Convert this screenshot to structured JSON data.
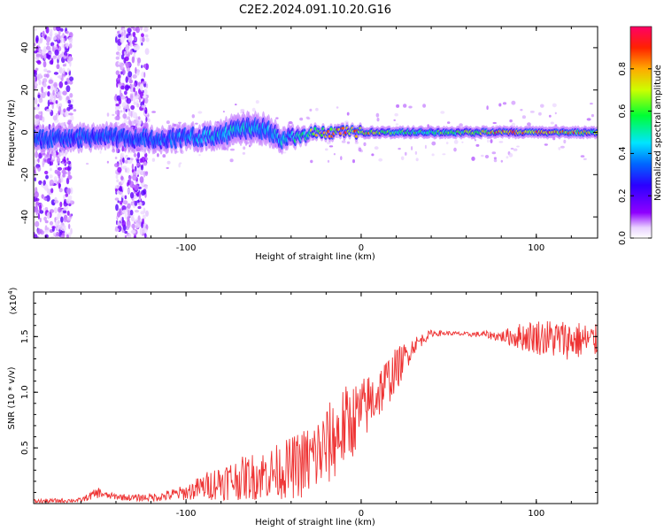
{
  "title": "C2E2.2024.091.10.20.G16",
  "chart_data": [
    {
      "type": "heatmap",
      "xlabel": "Height of straight line (km)",
      "ylabel": "Frequency (Hz)",
      "xlim": [
        -187,
        135
      ],
      "ylim": [
        -50,
        50
      ],
      "x_ticks": [
        "-100",
        "0",
        "100"
      ],
      "x_tick_values": [
        -100,
        0,
        100
      ],
      "y_ticks": [
        "-40",
        "-20",
        "0",
        "20",
        "40"
      ],
      "y_tick_values": [
        -40,
        -20,
        0,
        20,
        40
      ],
      "colorbar": {
        "label": "Normalized spectral amplitude",
        "ticks": [
          "0.0",
          "0.2",
          "0.4",
          "0.6",
          "0.8"
        ],
        "tick_values": [
          0.0,
          0.2,
          0.4,
          0.6,
          0.8
        ],
        "range": [
          0,
          1
        ]
      },
      "ridge_profile": {
        "x": [
          -187,
          -170,
          -150,
          -130,
          -110,
          -90,
          -75,
          -65,
          -55,
          -45,
          -35,
          -25,
          -10,
          0,
          20,
          40,
          60,
          80,
          100,
          120,
          135
        ],
        "center_hz": [
          -3,
          -3,
          -2,
          -3,
          -3,
          -2,
          0,
          2,
          1,
          -3,
          -2,
          0,
          0,
          0,
          0,
          0,
          0,
          0,
          0,
          0,
          0
        ],
        "half_width_hz": [
          4,
          4,
          4,
          4,
          4,
          4,
          5,
          5,
          5,
          4,
          3,
          2,
          2,
          2,
          2,
          2,
          2,
          2,
          2,
          2,
          2
        ],
        "peak_amplitude": [
          0.35,
          0.35,
          0.35,
          0.35,
          0.4,
          0.45,
          0.5,
          0.5,
          0.45,
          0.5,
          0.55,
          0.8,
          0.9,
          0.9,
          0.6,
          0.6,
          0.7,
          0.9,
          0.9,
          0.9,
          0.7
        ]
      },
      "scatter_bands_km": [
        [
          -187,
          -165
        ],
        [
          -140,
          -122
        ]
      ],
      "grid": false
    },
    {
      "type": "line",
      "xlabel": "Height of straight line (km)",
      "ylabel": "SNR (10 * v/v)",
      "y_multiplier_label": "(x10",
      "y_multiplier_exp": "4",
      "y_multiplier_close": ")",
      "color": "#ee3333",
      "xlim": [
        -187,
        135
      ],
      "ylim": [
        0,
        1.9
      ],
      "x_ticks": [
        "-100",
        "0",
        "100"
      ],
      "x_tick_values": [
        -100,
        0,
        100
      ],
      "y_ticks": [
        "0.5",
        "1.0",
        "1.5"
      ],
      "y_tick_values": [
        0.5,
        1.0,
        1.5
      ],
      "envelope": {
        "x": [
          -187,
          -160,
          -150,
          -145,
          -130,
          -115,
          -100,
          -90,
          -80,
          -70,
          -60,
          -50,
          -40,
          -30,
          -20,
          -10,
          0,
          10,
          20,
          30,
          40,
          50,
          60,
          70,
          80,
          90,
          100,
          110,
          120,
          135
        ],
        "mean": [
          0.02,
          0.03,
          0.1,
          0.07,
          0.05,
          0.06,
          0.1,
          0.15,
          0.2,
          0.22,
          0.25,
          0.28,
          0.32,
          0.38,
          0.5,
          0.68,
          0.82,
          1.0,
          1.2,
          1.42,
          1.53,
          1.53,
          1.52,
          1.52,
          1.5,
          1.5,
          1.5,
          1.48,
          1.47,
          1.46
        ],
        "spread": [
          0.02,
          0.02,
          0.05,
          0.03,
          0.03,
          0.04,
          0.07,
          0.12,
          0.17,
          0.19,
          0.22,
          0.24,
          0.28,
          0.34,
          0.38,
          0.38,
          0.3,
          0.25,
          0.2,
          0.08,
          0.03,
          0.02,
          0.02,
          0.03,
          0.05,
          0.12,
          0.16,
          0.18,
          0.18,
          0.15
        ]
      },
      "grid": false
    }
  ]
}
